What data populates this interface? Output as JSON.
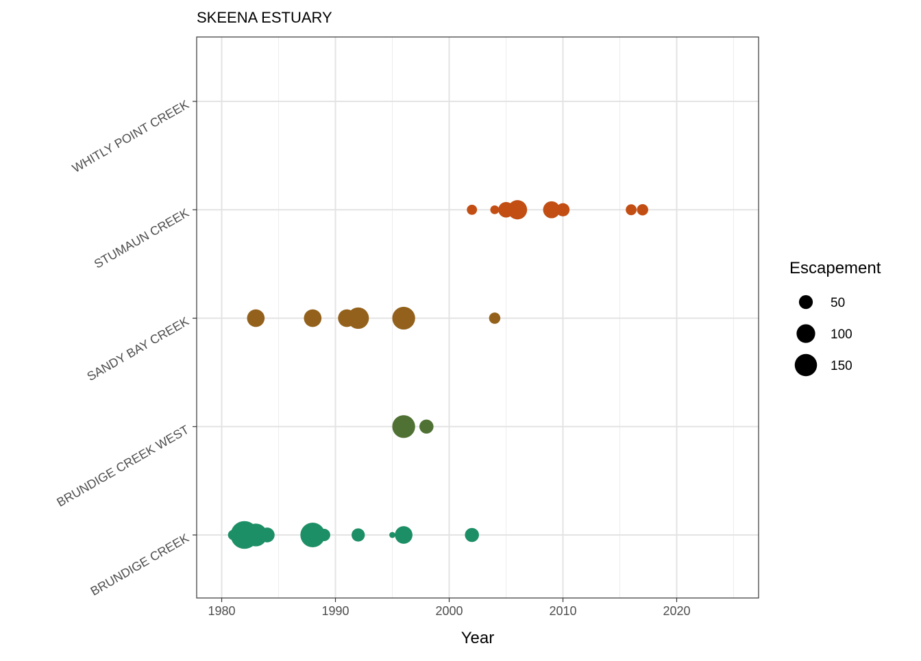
{
  "chart_data": {
    "type": "scatter",
    "title": "SKEENA ESTUARY",
    "xlabel": "Year",
    "ylabel": "",
    "xlim": [
      1977.8,
      2027.2
    ],
    "x_ticks": [
      1980,
      1990,
      2000,
      2010,
      2020
    ],
    "categories": [
      "BRUNDIGE CREEK",
      "BRUNDIGE CREEK WEST",
      "SANDY BAY CREEK",
      "STUMAUN CREEK",
      "WHITLY POINT CREEK"
    ],
    "grid": true,
    "legend": {
      "title": "Escapement",
      "placement": "right",
      "entries": [
        50,
        100,
        150
      ]
    },
    "series": [
      {
        "name": "BRUNDIGE CREEK",
        "color": "#1d8f66",
        "points": [
          [
            1981,
            15
          ],
          [
            1982,
            170
          ],
          [
            1983,
            110
          ],
          [
            1984,
            40
          ],
          [
            1988,
            130
          ],
          [
            1989,
            25
          ],
          [
            1992,
            30
          ],
          [
            1995,
            3
          ],
          [
            1996,
            60
          ],
          [
            2002,
            35
          ]
        ]
      },
      {
        "name": "BRUNDIGE CREEK WEST",
        "color": "#4f7133",
        "points": [
          [
            1996,
            110
          ],
          [
            1998,
            35
          ]
        ]
      },
      {
        "name": "SANDY BAY CREEK",
        "color": "#93611b",
        "points": [
          [
            1983,
            60
          ],
          [
            1988,
            60
          ],
          [
            1991,
            60
          ],
          [
            1992,
            95
          ],
          [
            1996,
            110
          ],
          [
            2004,
            20
          ]
        ]
      },
      {
        "name": "STUMAUN CREEK",
        "color": "#c24e14",
        "points": [
          [
            2002,
            15
          ],
          [
            2004,
            10
          ],
          [
            2005,
            45
          ],
          [
            2006,
            75
          ],
          [
            2009,
            55
          ],
          [
            2010,
            30
          ],
          [
            2016,
            18
          ],
          [
            2017,
            20
          ]
        ]
      },
      {
        "name": "WHITLY POINT CREEK",
        "color": "#7a6ab0",
        "points": []
      }
    ]
  }
}
